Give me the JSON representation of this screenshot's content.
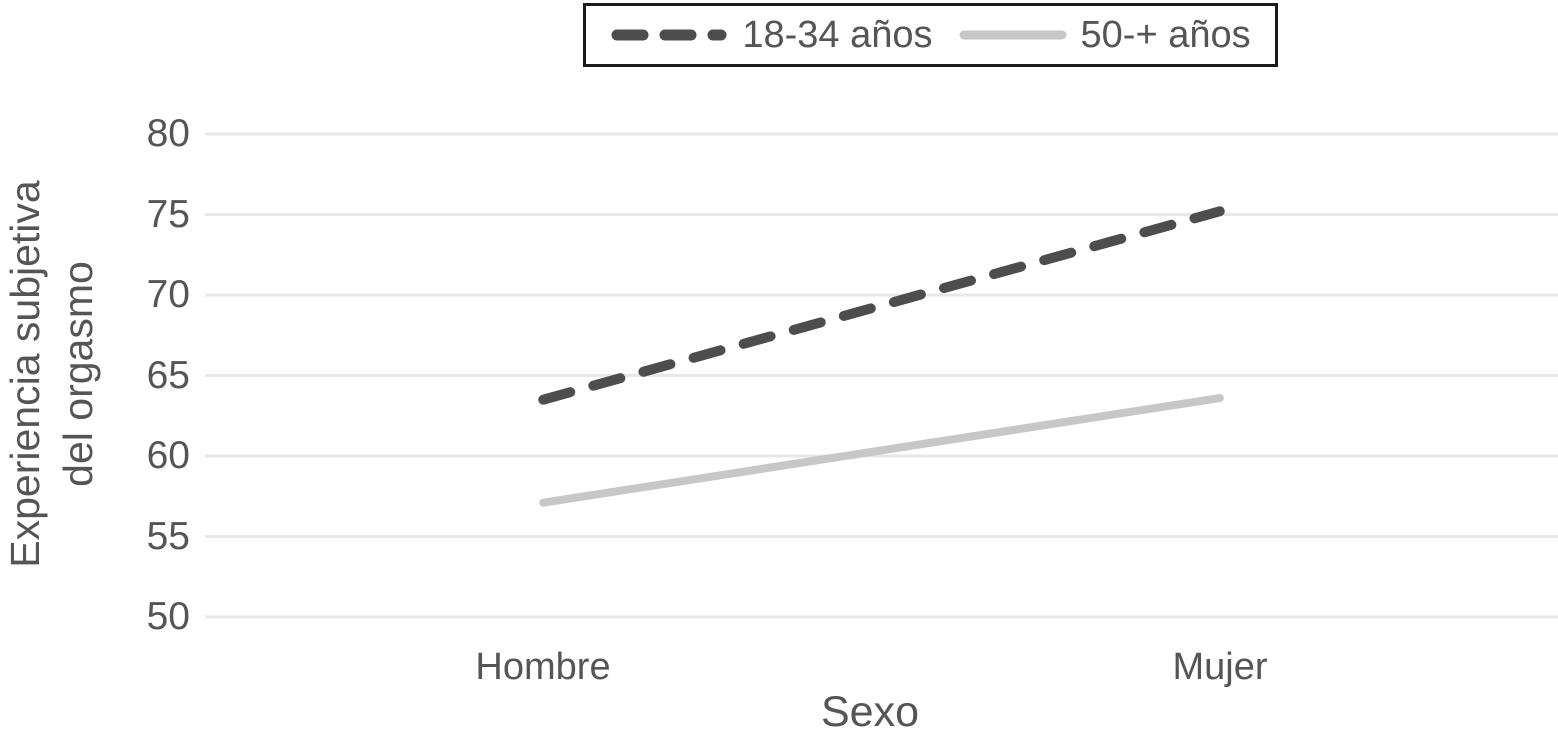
{
  "chart_data": {
    "type": "line",
    "categories": [
      "Hombre",
      "Mujer"
    ],
    "series": [
      {
        "name": "18-34 años",
        "values": [
          63.5,
          75.2
        ],
        "color": "#4d4d4d",
        "style": "dashed"
      },
      {
        "name": "50-+ años",
        "values": [
          57.1,
          63.6
        ],
        "color": "#c7c7c7",
        "style": "solid"
      }
    ],
    "title": "",
    "xlabel": "Sexo",
    "ylabel": "Experiencia subjetiva del orgasmo",
    "ylabel_lines": [
      "Experiencia subjetiva",
      "del orgasmo"
    ],
    "yticks": [
      80,
      75,
      70,
      65,
      60,
      55,
      50
    ],
    "ylim": [
      50,
      80
    ],
    "grid": "horizontal",
    "legend_position": "top"
  },
  "colors": {
    "text": "#555555",
    "gridline": "#e8e8e8",
    "legend_border": "#1a1a1a",
    "background": "#ffffff"
  }
}
